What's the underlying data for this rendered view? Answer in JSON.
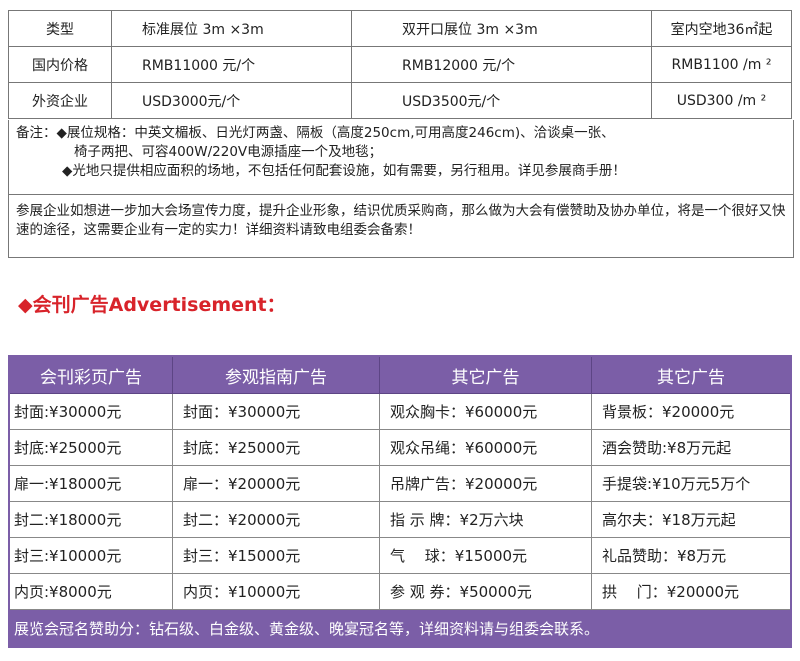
{
  "booth_table": {
    "header": [
      "类型",
      "标准展位 3m ×3m",
      "双开口展位 3m ×3m",
      "室内空地36㎡起"
    ],
    "rows": [
      [
        "国内价格",
        "RMB11000 元/个",
        "RMB12000 元/个",
        "RMB1100 /m ²"
      ],
      [
        "外资企业",
        "USD3000元/个",
        "USD3500元/个",
        "USD300 /m ²"
      ]
    ]
  },
  "notes": {
    "label": "备注：",
    "line1": "◆展位规格：中英文楣板、日光灯两盏、隔板（高度250cm,可用高度246cm)、洽谈桌一张、",
    "line2": "椅子两把、可容400W/220V电源插座一个及地毯；",
    "line3": "◆光地只提供相应面积的场地，不包括任何配套设施，如有需要，另行租用。详见参展商手册！"
  },
  "sponsor_text": "参展企业如想进一步加大会场宣传力度，提升企业形象，结识优质采购商，那么做为大会有偿赞助及协办单位，将是一个很好又快速的途径，这需要企业有一定的实力！详细资料请致电组委会备索！",
  "ad_heading": "◆会刊广告Advertisement：",
  "ad_table": {
    "header": [
      "会刊彩页广告",
      "参观指南广告",
      "其它广告",
      "其它广告"
    ],
    "rows": [
      [
        "封面:¥30000元",
        "封面：¥30000元",
        "观众胸卡：¥60000元",
        "背景板：¥20000元"
      ],
      [
        "封底:¥25000元",
        "封底：¥25000元",
        "观众吊绳：¥60000元",
        "酒会赞助:¥8万元起"
      ],
      [
        "扉一:¥18000元",
        "扉一：¥20000元",
        "吊牌广告：¥20000元",
        "手提袋:¥10万元5万个"
      ],
      [
        "封二:¥18000元",
        "封二：¥20000元",
        "指 示 牌：¥2万六块",
        "高尔夫：¥18万元起"
      ],
      [
        "封三:¥10000元",
        "封三：¥15000元",
        "气　 球：¥15000元",
        "礼品赞助：¥8万元"
      ],
      [
        "内页:¥8000元",
        "内页：¥10000元",
        "参 观 券：¥50000元",
        "拱　 门：¥20000元"
      ]
    ],
    "footer": "展览会冠名赞助分：钻石级、白金级、黄金级、晚宴冠名等，详细资料请与组委会联系。"
  },
  "colors": {
    "accent": "#7b5ea7",
    "heading": "#d8232a"
  }
}
